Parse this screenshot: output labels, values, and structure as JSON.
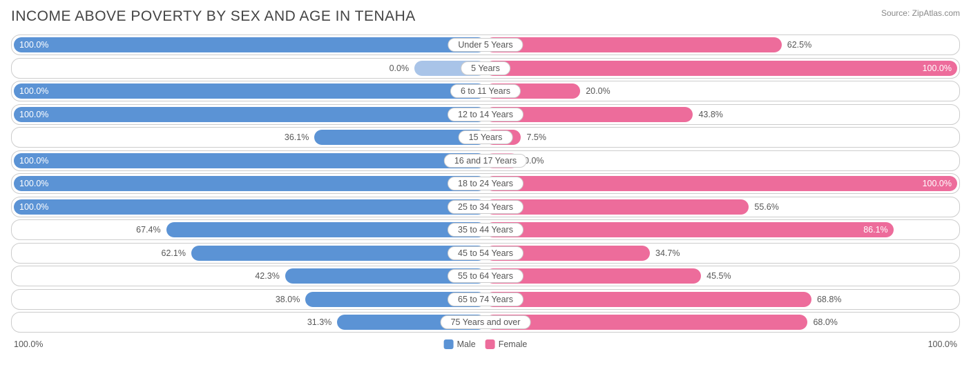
{
  "title": "INCOME ABOVE POVERTY BY SEX AND AGE IN TENAHA",
  "source": "Source: ZipAtlas.com",
  "colors": {
    "male_dark": "#5b93d5",
    "male_light": "#a9c4e8",
    "female_dark": "#ed6c9b",
    "female_light": "#f5a9c6",
    "border": "#cccccc",
    "text": "#555555",
    "bg": "#ffffff"
  },
  "legend": {
    "male": "Male",
    "female": "Female"
  },
  "axis": {
    "left": "100.0%",
    "right": "100.0%"
  },
  "rows": [
    {
      "category": "Under 5 Years",
      "male": 100.0,
      "male_label": "100.0%",
      "female": 62.5,
      "female_label": "62.5%"
    },
    {
      "category": "5 Years",
      "male": 15.0,
      "male_label": "0.0%",
      "female": 100.0,
      "female_label": "100.0%",
      "male_light": true
    },
    {
      "category": "6 to 11 Years",
      "male": 100.0,
      "male_label": "100.0%",
      "female": 20.0,
      "female_label": "20.0%"
    },
    {
      "category": "12 to 14 Years",
      "male": 100.0,
      "male_label": "100.0%",
      "female": 43.8,
      "female_label": "43.8%"
    },
    {
      "category": "15 Years",
      "male": 36.1,
      "male_label": "36.1%",
      "female": 7.5,
      "female_label": "7.5%"
    },
    {
      "category": "16 and 17 Years",
      "male": 100.0,
      "male_label": "100.0%",
      "female": 7.0,
      "female_label": "0.0%",
      "female_light": true
    },
    {
      "category": "18 to 24 Years",
      "male": 100.0,
      "male_label": "100.0%",
      "female": 100.0,
      "female_label": "100.0%"
    },
    {
      "category": "25 to 34 Years",
      "male": 100.0,
      "male_label": "100.0%",
      "female": 55.6,
      "female_label": "55.6%"
    },
    {
      "category": "35 to 44 Years",
      "male": 67.4,
      "male_label": "67.4%",
      "female": 86.1,
      "female_label": "86.1%"
    },
    {
      "category": "45 to 54 Years",
      "male": 62.1,
      "male_label": "62.1%",
      "female": 34.7,
      "female_label": "34.7%"
    },
    {
      "category": "55 to 64 Years",
      "male": 42.3,
      "male_label": "42.3%",
      "female": 45.5,
      "female_label": "45.5%"
    },
    {
      "category": "65 to 74 Years",
      "male": 38.0,
      "male_label": "38.0%",
      "female": 68.8,
      "female_label": "68.8%"
    },
    {
      "category": "75 Years and over",
      "male": 31.3,
      "male_label": "31.3%",
      "female": 68.0,
      "female_label": "68.0%"
    }
  ]
}
